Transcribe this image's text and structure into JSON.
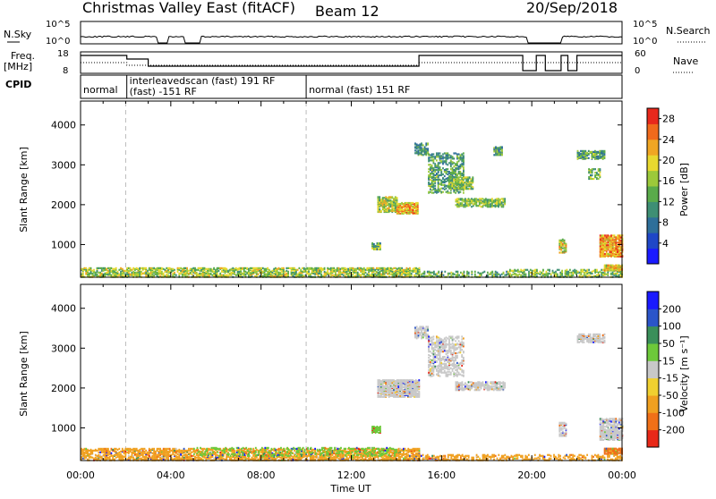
{
  "header": {
    "title": "Christmas Valley East (fitACF)",
    "beam": "Beam 12",
    "date": "20/Sep/2018"
  },
  "strips": {
    "nsky_label": "N.Sky",
    "nsearch_label": "N.Search",
    "noise_ticks": [
      "10^5",
      "10^0"
    ],
    "noise_ticks_right": [
      "10^5",
      "10^0"
    ],
    "freq_label_top": "Freq.",
    "freq_label_bottom": "[MHz]",
    "freq_ticks": [
      "18",
      "8"
    ],
    "nave_label": "Nave",
    "nave_ticks": [
      "60",
      "0"
    ],
    "cpid_label": "CPID",
    "cpid_segments": [
      {
        "label": "normal",
        "start": 0.0,
        "end": 2.05
      },
      {
        "label": "interleavedscan (fast) 191 RF",
        "label2": "(fast) -151 RF",
        "start": 2.05,
        "end": 10.0
      },
      {
        "label": "normal (fast) 151 RF",
        "start": 10.0,
        "end": 24.0
      }
    ]
  },
  "chart_data": [
    {
      "type": "heatmap",
      "name": "power",
      "ylabel": "Slant Range [km]",
      "xlabel": "Time UT",
      "xlim": [
        0,
        24
      ],
      "ylim": [
        180,
        4600
      ],
      "x_ticks": [
        "00:00",
        "04:00",
        "08:00",
        "12:00",
        "16:00",
        "20:00",
        "00:00"
      ],
      "y_ticks": [
        1000,
        2000,
        3000,
        4000
      ],
      "colorbar": {
        "label": "Power [dB]",
        "ticks": [
          "4",
          "8",
          "12",
          "16",
          "20",
          "24",
          "28"
        ],
        "range": [
          0,
          30
        ],
        "colors": [
          "#1a1aff",
          "#1f47c7",
          "#2e6f9a",
          "#3e8f74",
          "#5aab4a",
          "#9cc93a",
          "#e8d82f",
          "#f0a623",
          "#f06a1c",
          "#e8281c"
        ]
      },
      "echo_regions": [
        {
          "t0": 0.0,
          "t1": 15.0,
          "r0": 190,
          "r1": 420,
          "level": 0.55,
          "density": 0.55
        },
        {
          "t0": 15.0,
          "t1": 19.0,
          "r0": 190,
          "r1": 330,
          "level": 0.45,
          "density": 0.35
        },
        {
          "t0": 19.0,
          "t1": 24.0,
          "r0": 190,
          "r1": 380,
          "level": 0.5,
          "density": 0.45
        },
        {
          "t0": 13.15,
          "t1": 14.0,
          "r0": 1820,
          "r1": 2200,
          "level": 0.55,
          "density": 0.7
        },
        {
          "t0": 14.0,
          "t1": 14.95,
          "r0": 1780,
          "r1": 2050,
          "level": 0.75,
          "density": 0.8
        },
        {
          "t0": 12.9,
          "t1": 13.3,
          "r0": 880,
          "r1": 1050,
          "level": 0.45,
          "density": 0.6
        },
        {
          "t0": 14.8,
          "t1": 15.4,
          "r0": 3250,
          "r1": 3550,
          "level": 0.4,
          "density": 0.6
        },
        {
          "t0": 15.4,
          "t1": 17.0,
          "r0": 2300,
          "r1": 3300,
          "level": 0.4,
          "density": 0.4
        },
        {
          "t0": 16.3,
          "t1": 17.4,
          "r0": 2400,
          "r1": 2700,
          "level": 0.5,
          "density": 0.6
        },
        {
          "t0": 16.6,
          "t1": 18.8,
          "r0": 1950,
          "r1": 2150,
          "level": 0.5,
          "density": 0.6
        },
        {
          "t0": 18.3,
          "t1": 18.7,
          "r0": 3250,
          "r1": 3450,
          "level": 0.35,
          "density": 0.6
        },
        {
          "t0": 21.2,
          "t1": 21.5,
          "r0": 800,
          "r1": 1150,
          "level": 0.65,
          "density": 0.7
        },
        {
          "t0": 22.0,
          "t1": 23.2,
          "r0": 3150,
          "r1": 3350,
          "level": 0.4,
          "density": 0.6
        },
        {
          "t0": 22.5,
          "t1": 23.0,
          "r0": 2650,
          "r1": 2900,
          "level": 0.45,
          "density": 0.5
        },
        {
          "t0": 23.0,
          "t1": 24.0,
          "r0": 700,
          "r1": 1250,
          "level": 0.8,
          "density": 0.7
        },
        {
          "t0": 23.2,
          "t1": 24.0,
          "r0": 350,
          "r1": 500,
          "level": 0.7,
          "density": 0.9
        }
      ]
    },
    {
      "type": "heatmap",
      "name": "velocity",
      "ylabel": "Slant Range [km]",
      "xlabel": "Time UT",
      "xlim": [
        0,
        24
      ],
      "ylim": [
        180,
        4600
      ],
      "x_ticks": [
        "00:00",
        "04:00",
        "08:00",
        "12:00",
        "16:00",
        "20:00",
        "00:00"
      ],
      "y_ticks": [
        1000,
        2000,
        3000,
        4000
      ],
      "colorbar": {
        "label": "Velocity [m s⁻¹]",
        "ticks": [
          "200",
          "100",
          "50",
          "15",
          "-15",
          "-50",
          "-100",
          "-200"
        ],
        "colors": [
          "#1a1aff",
          "#2b55c9",
          "#3a8f5a",
          "#6dc93a",
          "#c8c8c8",
          "#f0d030",
          "#f0a020",
          "#f07018",
          "#e82818"
        ]
      },
      "echo_regions": [
        {
          "t0": 0.0,
          "t1": 15.0,
          "r0": 190,
          "r1": 480,
          "color": "#f0a020",
          "density": 0.55
        },
        {
          "t0": 5.0,
          "t1": 14.0,
          "r0": 300,
          "r1": 520,
          "color": "#6dc93a",
          "density": 0.25
        },
        {
          "t0": 15.0,
          "t1": 24.0,
          "r0": 190,
          "r1": 340,
          "color": "#f0a020",
          "density": 0.35
        },
        {
          "t0": 12.9,
          "t1": 13.3,
          "r0": 880,
          "r1": 1050,
          "color": "#6dc93a",
          "density": 0.7
        },
        {
          "t0": 13.15,
          "t1": 15.0,
          "r0": 1780,
          "r1": 2200,
          "color": "#c8c8c8",
          "density": 0.8
        },
        {
          "t0": 14.8,
          "t1": 15.4,
          "r0": 3250,
          "r1": 3550,
          "color": "#c8c8c8",
          "density": 0.6
        },
        {
          "t0": 15.4,
          "t1": 17.0,
          "r0": 2300,
          "r1": 3300,
          "color": "#c8c8c8",
          "density": 0.4
        },
        {
          "t0": 16.6,
          "t1": 18.8,
          "r0": 1950,
          "r1": 2150,
          "color": "#c8c8c8",
          "density": 0.6
        },
        {
          "t0": 21.2,
          "t1": 21.5,
          "r0": 800,
          "r1": 1150,
          "color": "#c8c8c8",
          "density": 0.6
        },
        {
          "t0": 22.0,
          "t1": 23.2,
          "r0": 3150,
          "r1": 3350,
          "color": "#c8c8c8",
          "density": 0.6
        },
        {
          "t0": 23.0,
          "t1": 24.0,
          "r0": 700,
          "r1": 1250,
          "color": "#c8c8c8",
          "density": 0.7
        },
        {
          "t0": 23.2,
          "t1": 24.0,
          "r0": 350,
          "r1": 500,
          "color": "#f07018",
          "density": 0.9
        }
      ]
    }
  ]
}
